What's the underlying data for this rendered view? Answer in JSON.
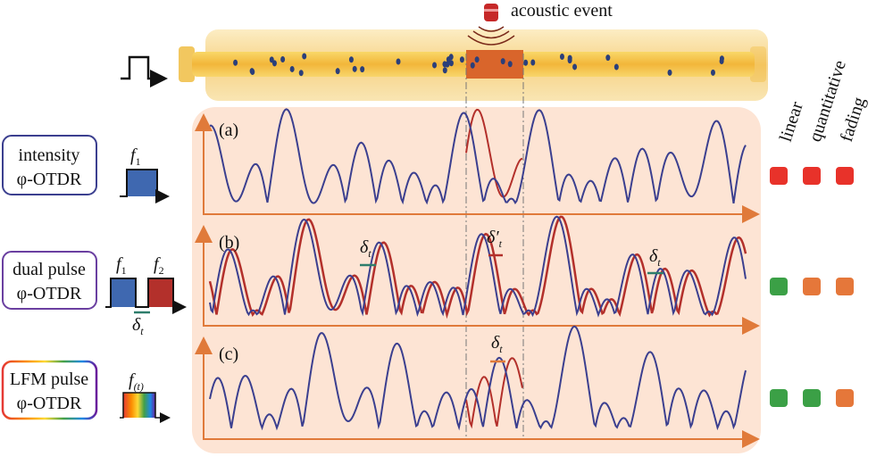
{
  "header": {
    "event_label": "acoustic event"
  },
  "columns": [
    "linear",
    "quantitative",
    "fading"
  ],
  "rows": [
    {
      "panel": "(a)",
      "label_lines": [
        "intensity",
        "φ-OTDR"
      ],
      "pulses": [
        {
          "base": "f",
          "sub": "1"
        }
      ]
    },
    {
      "panel": "(b)",
      "label_lines": [
        "dual pulse",
        "φ-OTDR"
      ],
      "pulses": [
        {
          "base": "f",
          "sub": "1"
        },
        {
          "base": "f",
          "sub": "2"
        }
      ],
      "delay": {
        "base": "δ",
        "sub": "t"
      },
      "annotations": [
        {
          "base": "δ",
          "sub": "t"
        },
        {
          "base": "δ′",
          "sub": "t"
        },
        {
          "base": "δ",
          "sub": "t"
        }
      ]
    },
    {
      "panel": "(c)",
      "label_lines": [
        "LFM pulse",
        "φ-OTDR"
      ],
      "pulses": [
        {
          "base": "f",
          "sub": "(t)"
        }
      ],
      "annotations": [
        {
          "base": "δ",
          "sub": "t"
        }
      ]
    }
  ]
}
